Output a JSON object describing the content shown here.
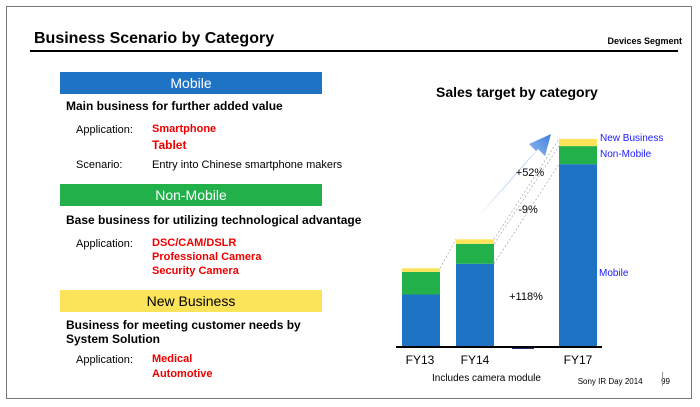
{
  "header": {
    "title": "Business Scenario by Category",
    "segment": "Devices Segment"
  },
  "mobile": {
    "banner": "Mobile",
    "heading": "Main business for further added value",
    "application_label": "Application:",
    "applications": [
      "Smartphone",
      "Tablet"
    ],
    "scenario_label": "Scenario:",
    "scenario": "Entry into Chinese smartphone makers"
  },
  "non_mobile": {
    "banner": "Non-Mobile",
    "heading": "Base business for utilizing technological advantage",
    "application_label": "Application:",
    "applications": [
      "DSC/CAM/DSLR",
      "Professional Camera",
      "Security Camera"
    ]
  },
  "new_business": {
    "banner": "New Business",
    "heading_line1": "Business for meeting customer needs by",
    "heading_line2": "System Solution",
    "application_label": "Application:",
    "applications": [
      "Medical",
      "Automotive"
    ]
  },
  "colors": {
    "mobile": "#1f73c4",
    "non_mobile": "#22b04b",
    "new_business": "#fbe35a",
    "label_blue": "#1a1aff",
    "highlight_red": "#e00000"
  },
  "chart_data": {
    "type": "bar",
    "stacked": true,
    "title": "Sales target by category",
    "categories": [
      "FY13",
      "FY14",
      "FY17"
    ],
    "series": [
      {
        "name": "Mobile",
        "values": [
          58,
          92,
          202
        ]
      },
      {
        "name": "Non-Mobile",
        "values": [
          25,
          22,
          20
        ]
      },
      {
        "name": "New Business",
        "values": [
          4,
          5,
          8
        ]
      }
    ],
    "annotations": [
      "+52%",
      "-9%",
      "+118%"
    ],
    "note": "Includes camera module",
    "legend_placement": "right"
  },
  "footer": {
    "source": "Sony IR Day 2014",
    "page": "99"
  }
}
